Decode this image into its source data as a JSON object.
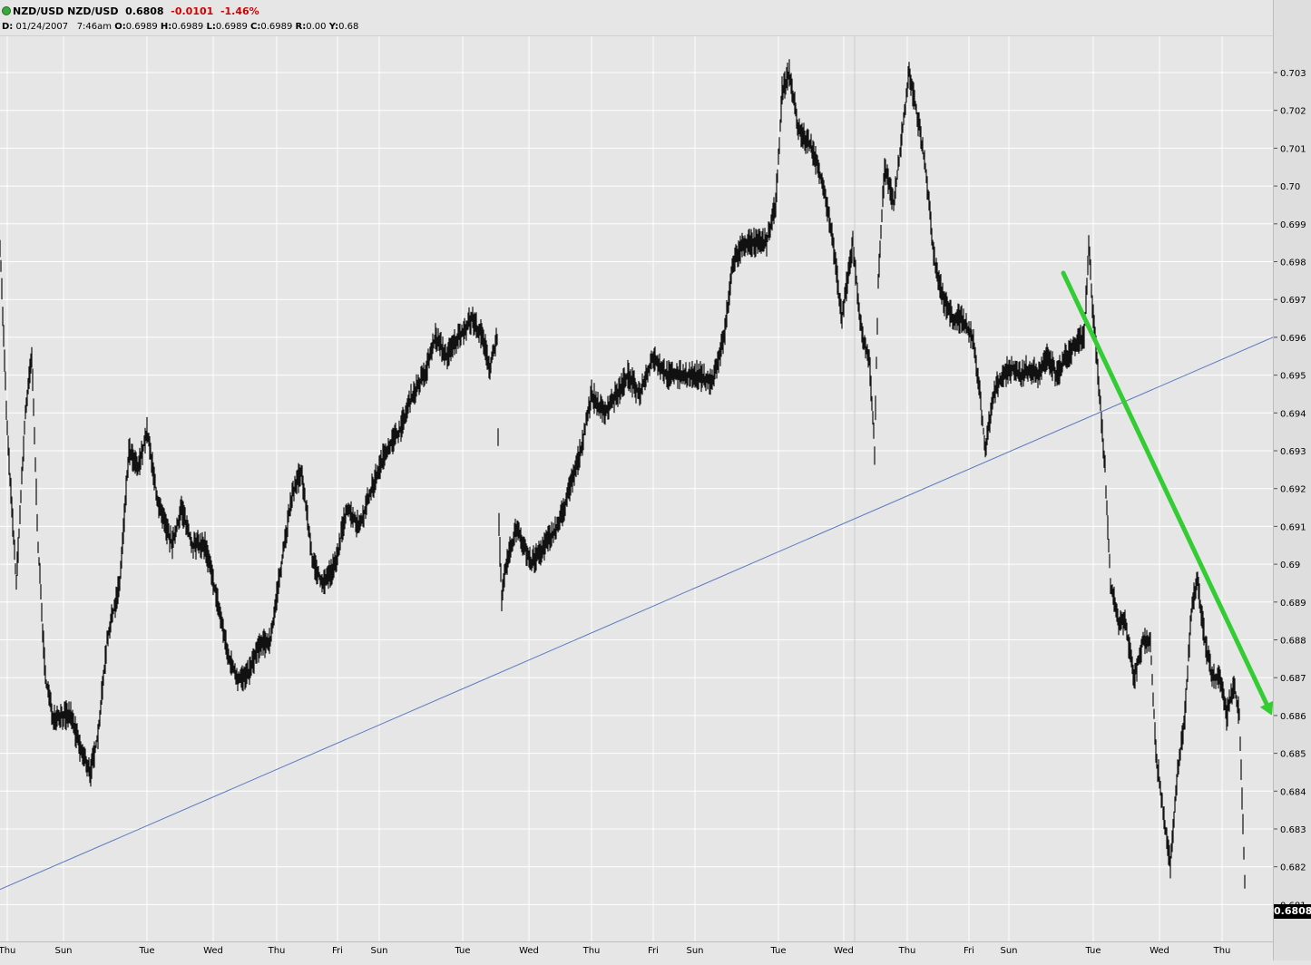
{
  "header": {
    "symbol": "NZD/USD NZD/USD",
    "last": "0.6808",
    "change": "-0.0101",
    "change_pct": "-1.46%",
    "date_label": "D:",
    "date": "01/24/2007",
    "time": "7:46am",
    "o_label": "O:",
    "o": "0.6989",
    "h_label": "H:",
    "h": "0.6989",
    "l_label": "L:",
    "l": "0.6989",
    "c_label": "C:",
    "c": "0.6989",
    "r_label": "R:",
    "r": "0.00",
    "y_label": "Y:",
    "y": "0.68"
  },
  "last_price_tag": "0.6808",
  "colors": {
    "background": "#e6e6e6",
    "price": "#111111",
    "trendline": "#5a78c0",
    "arrow": "#33cc33",
    "grid": "#ffffff",
    "change": "#d00000"
  },
  "chart_data": {
    "type": "line",
    "ylim": [
      0.6805,
      0.7035
    ],
    "y_ticks": [
      "0.703",
      "0.702",
      "0.701",
      "0.70",
      "0.699",
      "0.698",
      "0.697",
      "0.696",
      "0.695",
      "0.694",
      "0.693",
      "0.692",
      "0.691",
      "0.69",
      "0.689",
      "0.688",
      "0.687",
      "0.686",
      "0.685",
      "0.684",
      "0.683",
      "0.682",
      "0.681"
    ],
    "x_ticks": [
      "Thu",
      "Sun",
      "Tue",
      "Wed",
      "Thu",
      "Fri",
      "Sun",
      "Tue",
      "Wed",
      "Thu",
      "Fri",
      "Sun",
      "Tue",
      "Wed",
      "Thu",
      "Fri",
      "Sun",
      "Tue",
      "Wed",
      "Thu"
    ],
    "series": [
      {
        "values": [
          [
            0,
            0.6985
          ],
          [
            8,
            0.6935
          ],
          [
            18,
            0.6895
          ],
          [
            28,
            0.694
          ],
          [
            35,
            0.6955
          ],
          [
            42,
            0.6905
          ],
          [
            50,
            0.687
          ],
          [
            58,
            0.686
          ],
          [
            66,
            0.686
          ],
          [
            78,
            0.686
          ],
          [
            90,
            0.685
          ],
          [
            100,
            0.6845
          ],
          [
            108,
            0.6855
          ],
          [
            118,
            0.688
          ],
          [
            132,
            0.6895
          ],
          [
            142,
            0.693
          ],
          [
            152,
            0.6925
          ],
          [
            162,
            0.6935
          ],
          [
            175,
            0.6915
          ],
          [
            190,
            0.6905
          ],
          [
            200,
            0.6915
          ],
          [
            212,
            0.6905
          ],
          [
            226,
            0.6905
          ],
          [
            240,
            0.689
          ],
          [
            252,
            0.6875
          ],
          [
            262,
            0.687
          ],
          [
            272,
            0.687
          ],
          [
            285,
            0.6878
          ],
          [
            298,
            0.688
          ],
          [
            310,
            0.69
          ],
          [
            322,
            0.6918
          ],
          [
            332,
            0.6925
          ],
          [
            345,
            0.69
          ],
          [
            356,
            0.6895
          ],
          [
            370,
            0.69
          ],
          [
            382,
            0.6915
          ],
          [
            396,
            0.691
          ],
          [
            410,
            0.692
          ],
          [
            425,
            0.693
          ],
          [
            440,
            0.6935
          ],
          [
            455,
            0.6945
          ],
          [
            468,
            0.695
          ],
          [
            480,
            0.696
          ],
          [
            492,
            0.6955
          ],
          [
            505,
            0.696
          ],
          [
            520,
            0.6965
          ],
          [
            532,
            0.696
          ],
          [
            540,
            0.6952
          ],
          [
            548,
            0.696
          ],
          [
            550,
            0.691
          ],
          [
            553,
            0.689
          ],
          [
            558,
            0.69
          ],
          [
            570,
            0.691
          ],
          [
            585,
            0.69
          ],
          [
            600,
            0.6905
          ],
          [
            615,
            0.691
          ],
          [
            628,
            0.692
          ],
          [
            640,
            0.693
          ],
          [
            652,
            0.6945
          ],
          [
            665,
            0.694
          ],
          [
            680,
            0.6945
          ],
          [
            692,
            0.695
          ],
          [
            705,
            0.6945
          ],
          [
            720,
            0.6955
          ],
          [
            735,
            0.695
          ],
          [
            750,
            0.695
          ],
          [
            770,
            0.695
          ],
          [
            785,
            0.6948
          ],
          [
            798,
            0.696
          ],
          [
            808,
            0.698
          ],
          [
            820,
            0.6985
          ],
          [
            832,
            0.6985
          ],
          [
            845,
            0.6985
          ],
          [
            855,
            0.6995
          ],
          [
            862,
            0.7025
          ],
          [
            870,
            0.703
          ],
          [
            880,
            0.7015
          ],
          [
            895,
            0.701
          ],
          [
            908,
            0.7
          ],
          [
            918,
            0.6985
          ],
          [
            928,
            0.6965
          ],
          [
            940,
            0.6985
          ],
          [
            950,
            0.696
          ],
          [
            958,
            0.6955
          ],
          [
            964,
            0.693
          ],
          [
            968,
            0.6975
          ],
          [
            975,
            0.7005
          ],
          [
            985,
            0.6995
          ],
          [
            995,
            0.7015
          ],
          [
            1002,
            0.703
          ],
          [
            1010,
            0.702
          ],
          [
            1020,
            0.7005
          ],
          [
            1030,
            0.698
          ],
          [
            1040,
            0.697
          ],
          [
            1050,
            0.6965
          ],
          [
            1060,
            0.6965
          ],
          [
            1072,
            0.696
          ],
          [
            1080,
            0.6945
          ],
          [
            1086,
            0.693
          ],
          [
            1095,
            0.6945
          ],
          [
            1105,
            0.695
          ],
          [
            1115,
            0.6952
          ],
          [
            1125,
            0.695
          ],
          [
            1135,
            0.6952
          ],
          [
            1145,
            0.695
          ],
          [
            1155,
            0.6955
          ],
          [
            1165,
            0.695
          ],
          [
            1175,
            0.6955
          ],
          [
            1185,
            0.6958
          ],
          [
            1195,
            0.696
          ],
          [
            1200,
            0.6985
          ],
          [
            1205,
            0.6965
          ],
          [
            1212,
            0.6945
          ],
          [
            1218,
            0.6925
          ],
          [
            1224,
            0.6895
          ],
          [
            1232,
            0.6885
          ],
          [
            1240,
            0.6885
          ],
          [
            1250,
            0.687
          ],
          [
            1260,
            0.688
          ],
          [
            1268,
            0.688
          ],
          [
            1274,
            0.685
          ],
          [
            1282,
            0.6835
          ],
          [
            1290,
            0.682
          ],
          [
            1298,
            0.6845
          ],
          [
            1306,
            0.686
          ],
          [
            1314,
            0.689
          ],
          [
            1320,
            0.6895
          ],
          [
            1328,
            0.688
          ],
          [
            1336,
            0.687
          ],
          [
            1344,
            0.687
          ],
          [
            1352,
            0.686
          ],
          [
            1360,
            0.6868
          ],
          [
            1366,
            0.686
          ],
          [
            1370,
            0.683
          ],
          [
            1373,
            0.6808
          ]
        ]
      }
    ],
    "annotations": [
      {
        "type": "trendline",
        "from": [
          0,
          0.6814
        ],
        "to": [
          1403,
          0.696
        ]
      },
      {
        "type": "arrow",
        "from": [
          1172,
          0.6977
        ],
        "to": [
          1402,
          0.686
        ]
      }
    ]
  }
}
